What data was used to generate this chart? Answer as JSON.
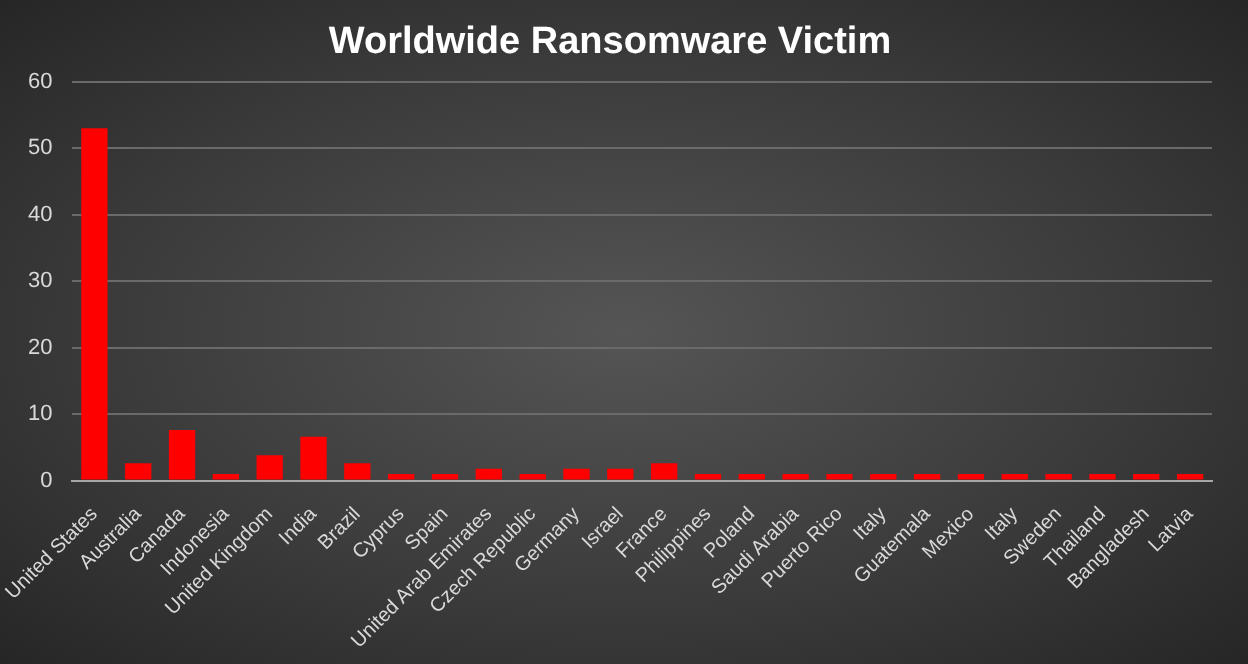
{
  "chart_data": {
    "type": "bar",
    "title": "Worldwide Ransomware Victim",
    "categories": [
      "United States",
      "Australia",
      "Canada",
      "Indonesia",
      "United Kingdom",
      "India",
      "Brazil",
      "Cyprus",
      "Spain",
      "United Arab Emirates",
      "Czech Republic",
      "Germany",
      "Israel",
      "France",
      "Philippines",
      "Poland",
      "Saudi Arabia",
      "Puerto Rico",
      "Italy",
      "Guatemala",
      "Mexico",
      "Italy",
      "Sweden",
      "Thailand",
      "Bangladesh",
      "Latvia"
    ],
    "values": [
      53,
      2.6,
      7.6,
      1,
      3.8,
      6.6,
      2.6,
      1,
      1,
      1.8,
      1,
      1.8,
      1.8,
      2.6,
      1,
      1,
      1,
      1,
      1,
      1,
      1,
      1,
      1,
      1,
      1,
      1
    ],
    "color": "#ff0000",
    "ylim": [
      0,
      60
    ],
    "yticks": [
      0,
      10,
      20,
      30,
      40,
      50,
      60
    ],
    "grid": "y"
  }
}
